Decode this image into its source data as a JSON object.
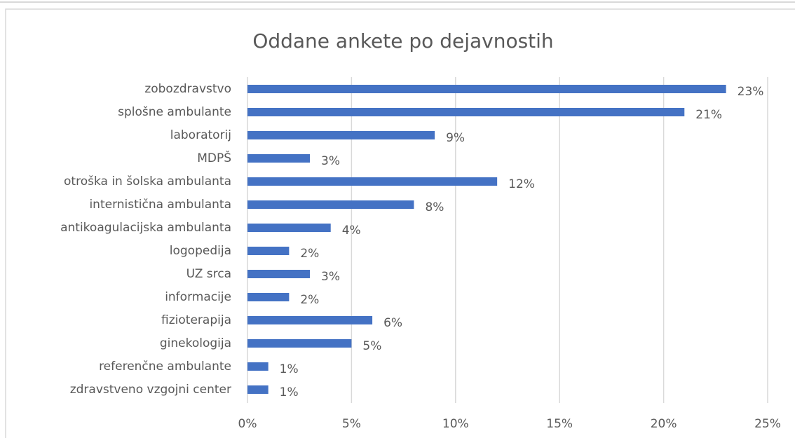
{
  "chart_data": {
    "type": "bar",
    "orientation": "horizontal",
    "title": "Oddane ankete po dejavnostih",
    "categories": [
      "zobozdravstvo",
      "splošne ambulante",
      "laboratorij",
      "MDPŠ",
      "otroška in šolska ambulanta",
      "internistična ambulanta",
      "antikoagulacijska ambulanta",
      "logopedija",
      "UZ srca",
      "informacije",
      "fizioterapija",
      "ginekologija",
      "referenčne ambulante",
      "zdravstveno vzgojni center"
    ],
    "values": [
      23,
      21,
      9,
      3,
      12,
      8,
      4,
      2,
      3,
      2,
      6,
      5,
      1,
      1
    ],
    "value_labels": [
      "23%",
      "21%",
      "9%",
      "3%",
      "12%",
      "8%",
      "4%",
      "2%",
      "3%",
      "2%",
      "6%",
      "5%",
      "1%",
      "1%"
    ],
    "color": "#4472c4",
    "xlim": [
      0,
      25
    ],
    "xticks": [
      {
        "value": 0,
        "label": "0%"
      },
      {
        "value": 5,
        "label": "5%"
      },
      {
        "value": 10,
        "label": "10%"
      },
      {
        "value": 15,
        "label": "15%"
      },
      {
        "value": 20,
        "label": "20%"
      },
      {
        "value": 25,
        "label": "25%"
      }
    ],
    "grid": true
  }
}
